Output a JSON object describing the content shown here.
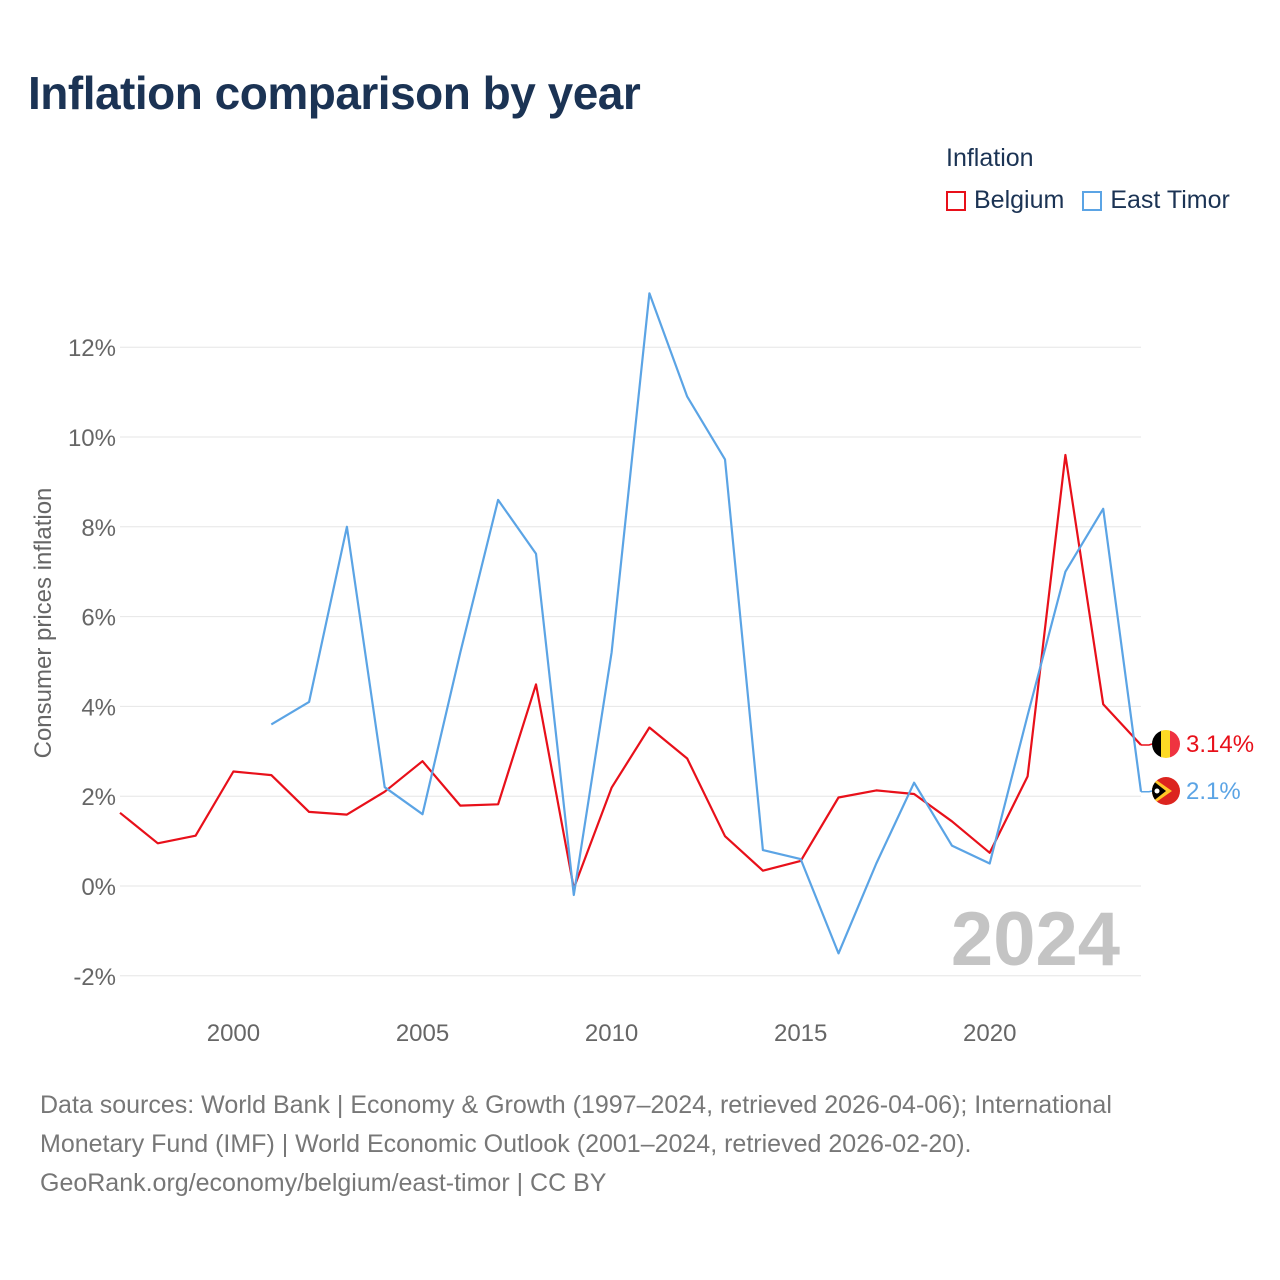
{
  "title": "Inflation comparison by year",
  "legend": {
    "title": "Inflation",
    "items": [
      {
        "label": "Belgium",
        "color": "#e8101a"
      },
      {
        "label": "East Timor",
        "color": "#5ba4e5"
      }
    ]
  },
  "watermark_year": "2024",
  "footer": {
    "line1": "Data sources: World Bank | Economy & Growth (1997–2024, retrieved 2026-04-06); International",
    "line2": "Monetary Fund (IMF) | World Economic Outlook (2001–2024, retrieved 2026-02-20).",
    "line3": "GeoRank.org/economy/belgium/east-timor | CC BY"
  },
  "chart_data": {
    "type": "line",
    "title": "Inflation comparison by year",
    "xlabel": "",
    "ylabel": "Consumer prices inflation",
    "xlim": [
      1997,
      2024
    ],
    "ylim": [
      -2.5,
      13.2
    ],
    "x_ticks": [
      2000,
      2005,
      2010,
      2015,
      2020
    ],
    "x_tick_labels": [
      "2000",
      "2005",
      "2010",
      "2015",
      "2020"
    ],
    "y_ticks": [
      -2,
      0,
      2,
      4,
      6,
      8,
      10,
      12
    ],
    "y_tick_labels": [
      "-2%",
      "0%",
      "2%",
      "4%",
      "6%",
      "8%",
      "10%",
      "12%"
    ],
    "grid": true,
    "legend_position": "top-right",
    "series": [
      {
        "name": "Belgium",
        "color": "#e8101a",
        "end_label": "3.14%",
        "x": [
          1997,
          1998,
          1999,
          2000,
          2001,
          2002,
          2003,
          2004,
          2005,
          2006,
          2007,
          2008,
          2009,
          2010,
          2011,
          2012,
          2013,
          2014,
          2015,
          2016,
          2017,
          2018,
          2019,
          2020,
          2021,
          2022,
          2023,
          2024
        ],
        "values": [
          1.63,
          0.95,
          1.12,
          2.55,
          2.47,
          1.65,
          1.59,
          2.1,
          2.78,
          1.79,
          1.82,
          4.49,
          -0.05,
          2.19,
          3.53,
          2.84,
          1.11,
          0.34,
          0.56,
          1.97,
          2.13,
          2.05,
          1.44,
          0.74,
          2.44,
          9.6,
          4.05,
          3.14
        ]
      },
      {
        "name": "East Timor",
        "color": "#5ba4e5",
        "end_label": "2.1%",
        "x": [
          2001,
          2002,
          2003,
          2004,
          2005,
          2006,
          2007,
          2008,
          2009,
          2010,
          2011,
          2012,
          2013,
          2014,
          2015,
          2016,
          2017,
          2018,
          2019,
          2020,
          2021,
          2022,
          2023,
          2024
        ],
        "values": [
          3.6,
          4.1,
          8.0,
          2.2,
          1.6,
          5.2,
          8.6,
          7.4,
          -0.2,
          5.2,
          13.2,
          10.9,
          9.5,
          0.8,
          0.6,
          -1.5,
          0.5,
          2.3,
          0.9,
          0.5,
          3.8,
          7.0,
          8.4,
          2.1
        ]
      }
    ]
  }
}
